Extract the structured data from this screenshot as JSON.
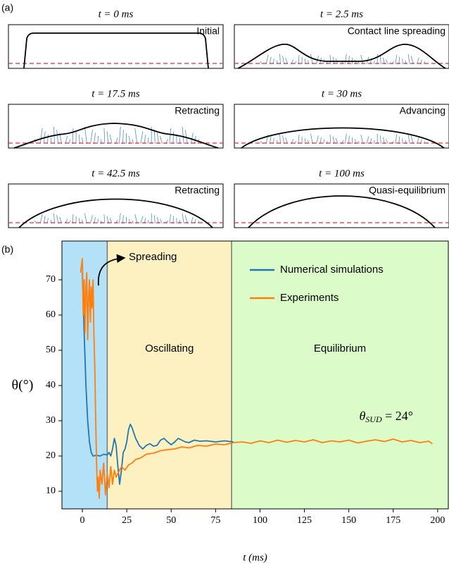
{
  "panel_labels": [
    "(a)",
    "(b)"
  ],
  "snapshots": [
    {
      "time": "t = 0 ms",
      "label": "Initial"
    },
    {
      "time": "t = 2.5 ms",
      "label": "Contact line spreading"
    },
    {
      "time": "t = 17.5 ms",
      "label": "Retracting"
    },
    {
      "time": "t = 30 ms",
      "label": "Advancing"
    },
    {
      "time": "t = 42.5 ms",
      "label": "Retracting"
    },
    {
      "time": "t = 100 ms",
      "label": "Quasi-equilibrium"
    }
  ],
  "chart_data": {
    "type": "line",
    "xlabel": "t (ms)",
    "ylabel": "θ(°)",
    "xlim": [
      -11.5,
      206
    ],
    "xticks": [
      0,
      25,
      50,
      75,
      100,
      125,
      150,
      175,
      200
    ],
    "ylim": [
      5,
      81
    ],
    "yticks": [
      10,
      20,
      30,
      40,
      50,
      60,
      70
    ],
    "legend": "upper right",
    "region_bounds": [
      14,
      84
    ],
    "regions": [
      {
        "label": "Spreading",
        "color": "#b3e1f7"
      },
      {
        "label": "Oscillating",
        "color": "#fdf1c2"
      },
      {
        "label": "Equilibrium",
        "color": "#dbfbc9"
      }
    ],
    "annotation": {
      "symbol": "θ",
      "subscript": "SUD",
      "text": " = 24°"
    },
    "series": [
      {
        "name": "Numerical simulations",
        "color": "#1f77b4",
        "x": [
          0,
          1,
          2,
          3,
          4,
          5,
          6,
          8,
          10,
          12,
          14,
          15,
          16,
          17,
          18,
          19,
          20,
          21,
          22,
          23,
          24,
          25,
          26,
          27,
          28,
          30,
          32,
          34,
          36,
          38,
          40,
          42,
          44,
          46,
          48,
          50,
          52,
          54,
          56,
          58,
          60,
          63,
          66,
          70,
          75,
          80,
          85
        ],
        "values": [
          72,
          55,
          40,
          30,
          24,
          21,
          20,
          20.2,
          20,
          20.5,
          20.3,
          21,
          20,
          22,
          25,
          23,
          17,
          12,
          16,
          21,
          22,
          24,
          27.5,
          29,
          28,
          25,
          23,
          22,
          23,
          23.5,
          22.8,
          23,
          24.5,
          25,
          24,
          23.2,
          24,
          25,
          24.5,
          24,
          23.8,
          24.5,
          24.2,
          24.3,
          24,
          24.3,
          24
        ]
      },
      {
        "name": "Experiments",
        "color": "#ff7f0e",
        "x": [
          -1,
          0,
          0.5,
          1,
          1.5,
          2,
          2.5,
          3,
          3.5,
          4,
          4.5,
          5,
          5.5,
          6,
          6.5,
          7,
          7.5,
          8,
          8.5,
          9,
          9.5,
          10,
          11,
          12,
          13,
          14,
          15,
          16,
          17,
          18,
          19,
          20,
          22,
          24,
          26,
          28,
          30,
          33,
          36,
          40,
          44,
          48,
          52,
          56,
          60,
          65,
          70,
          75,
          80,
          85,
          90,
          95,
          100,
          105,
          110,
          115,
          120,
          125,
          130,
          135,
          140,
          145,
          150,
          155,
          160,
          165,
          170,
          175,
          180,
          185,
          190,
          195,
          197
        ],
        "values": [
          72,
          76,
          60,
          70,
          55,
          68,
          72,
          53,
          65,
          70,
          58,
          68,
          62,
          70,
          55,
          45,
          30,
          18,
          10,
          14,
          8,
          16,
          12,
          18,
          9,
          15,
          11,
          17,
          12,
          16,
          14,
          15,
          17,
          16,
          17.5,
          18,
          19,
          19.5,
          20.5,
          20.8,
          21.5,
          21.8,
          22,
          22.6,
          22.3,
          23,
          22.8,
          23.4,
          23.2,
          23.8,
          24,
          23.6,
          24.3,
          23.8,
          24.5,
          23.9,
          24.4,
          24,
          24.6,
          23.8,
          24.3,
          24,
          24.5,
          23.7,
          24.2,
          24.6,
          24.1,
          24.8,
          24,
          24.4,
          23.8,
          24.2,
          23.5
        ]
      }
    ]
  }
}
